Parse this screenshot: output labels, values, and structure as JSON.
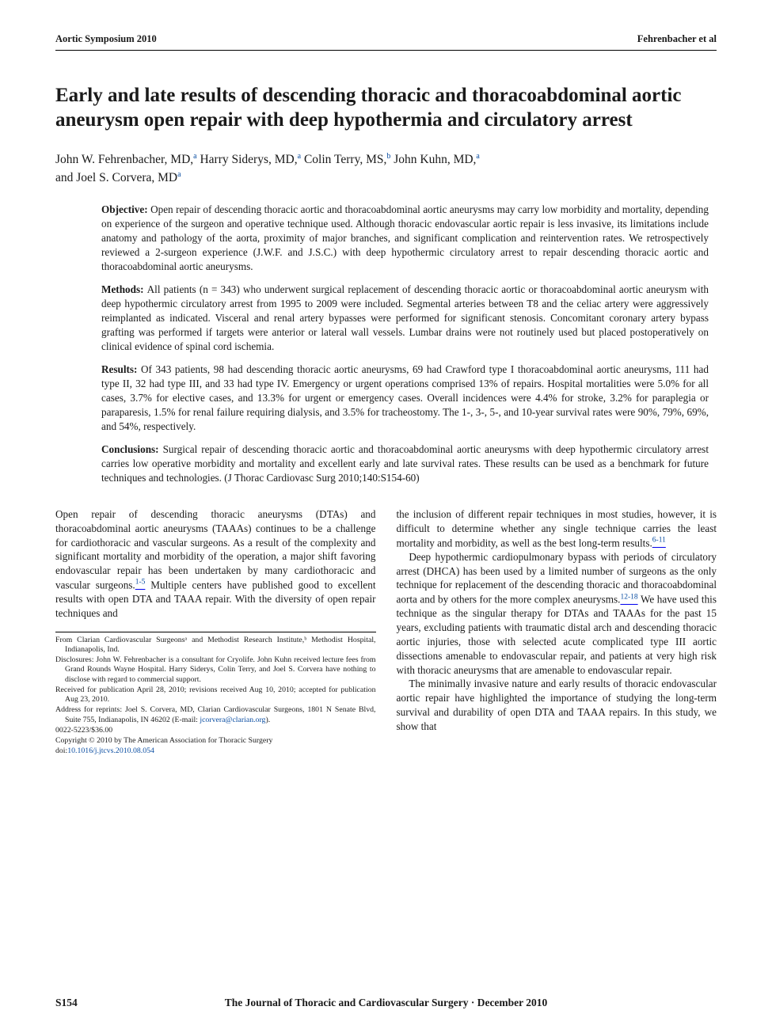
{
  "running_head": {
    "left": "Aortic Symposium 2010",
    "right": "Fehrenbacher et al"
  },
  "title": "Early and late results of descending thoracic and thoracoabdominal aortic aneurysm open repair with deep hypothermia and circulatory arrest",
  "authors": {
    "a1_name": "John W. Fehrenbacher, MD,",
    "a1_aff": "a",
    "a2_name": " Harry Siderys, MD,",
    "a2_aff": "a",
    "a3_name": " Colin Terry, MS,",
    "a3_aff": "b",
    "a4_name": " John Kuhn, MD,",
    "a4_aff": "a",
    "and": "and ",
    "a5_name": "Joel S. Corvera, MD",
    "a5_aff": "a"
  },
  "abstract": {
    "obj_label": "Objective: ",
    "obj_text": "Open repair of descending thoracic aortic and thoracoabdominal aortic aneurysms may carry low morbidity and mortality, depending on experience of the surgeon and operative technique used. Although thoracic endovascular aortic repair is less invasive, its limitations include anatomy and pathology of the aorta, proximity of major branches, and significant complication and reintervention rates. We retrospectively reviewed a 2-surgeon experience (J.W.F. and J.S.C.) with deep hypothermic circulatory arrest to repair descending thoracic aortic and thoracoabdominal aortic aneurysms.",
    "met_label": "Methods: ",
    "met_text": "All patients (n = 343) who underwent surgical replacement of descending thoracic aortic or thoracoabdominal aortic aneurysm with deep hypothermic circulatory arrest from 1995 to 2009 were included. Segmental arteries between T8 and the celiac artery were aggressively reimplanted as indicated. Visceral and renal artery bypasses were performed for significant stenosis. Concomitant coronary artery bypass grafting was performed if targets were anterior or lateral wall vessels. Lumbar drains were not routinely used but placed postoperatively on clinical evidence of spinal cord ischemia.",
    "res_label": "Results: ",
    "res_text": "Of 343 patients, 98 had descending thoracic aortic aneurysms, 69 had Crawford type I thoracoabdominal aortic aneurysms, 111 had type II, 32 had type III, and 33 had type IV. Emergency or urgent operations comprised 13% of repairs. Hospital mortalities were 5.0% for all cases, 3.7% for elective cases, and 13.3% for urgent or emergency cases. Overall incidences were 4.4% for stroke, 3.2% for paraplegia or paraparesis, 1.5% for renal failure requiring dialysis, and 3.5% for tracheostomy. The 1-, 3-, 5-, and 10-year survival rates were 90%, 79%, 69%, and 54%, respectively.",
    "con_label": "Conclusions: ",
    "con_text": "Surgical repair of descending thoracic aortic and thoracoabdominal aortic aneurysms with deep hypothermic circulatory arrest carries low operative morbidity and mortality and excellent early and late survival rates. These results can be used as a benchmark for future techniques and technologies. (J Thorac Cardiovasc Surg 2010;140:S154-60)"
  },
  "body": {
    "col1_p1a": "Open repair of descending thoracic aneurysms (DTAs) and thoracoabdominal aortic aneurysms (TAAAs) continues to be a challenge for cardiothoracic and vascular surgeons. As a result of the complexity and significant mortality and morbidity of the operation, a major shift favoring endovascular repair has been undertaken by many cardiothoracic and vascular surgeons.",
    "col1_ref1": "1-5",
    "col1_p1b": " Multiple centers have published good to excellent results with open DTA and TAAA repair. With the diversity of open repair techniques and ",
    "col2_p1a": "the inclusion of different repair techniques in most studies, however, it is difficult to determine whether any single technique carries the least mortality and morbidity, as well as the best long-term results.",
    "col2_ref1": "6-11",
    "col2_p2a": "Deep hypothermic cardiopulmonary bypass with periods of circulatory arrest (DHCA) has been used by a limited number of surgeons as the only technique for replacement of the descending thoracic and thoracoabdominal aorta and by others for the more complex aneurysms.",
    "col2_ref2": "12-18",
    "col2_p2b": " We have used this technique as the singular therapy for DTAs and TAAAs for the past 15 years, excluding patients with traumatic distal arch and descending thoracic aortic injuries, those with selected acute complicated type III aortic dissections amenable to endovascular repair, and patients at very high risk with thoracic aneurysms that are amenable to endovascular repair.",
    "col2_p3": "The minimally invasive nature and early results of thoracic endovascular aortic repair have highlighted the importance of studying the long-term survival and durability of open DTA and TAAA repairs. In this study, we show that"
  },
  "footnotes": {
    "from": "From Clarian Cardiovascular Surgeonsᵃ and Methodist Research Institute,ᵇ Methodist Hospital, Indianapolis, Ind.",
    "disclosures": "Disclosures: John W. Fehrenbacher is a consultant for Cryolife. John Kuhn received lecture fees from Grand Rounds Wayne Hospital. Harry Siderys, Colin Terry, and Joel S. Corvera have nothing to disclose with regard to commercial support.",
    "received": "Received for publication April 28, 2010; revisions received Aug 10, 2010; accepted for publication Aug 23, 2010.",
    "address_a": "Address for reprints: Joel S. Corvera, MD, Clarian Cardiovascular Surgeons, 1801 N Senate Blvd, Suite 755, Indianapolis, IN 46202 (E-mail: ",
    "address_email": "jcorvera@clarian.org",
    "address_b": ").",
    "issn": "0022-5223/$36.00",
    "copyright": "Copyright © 2010 by The American Association for Thoracic Surgery",
    "doi_label": "doi:",
    "doi": "10.1016/j.jtcvs.2010.08.054"
  },
  "footer": {
    "page": "S154",
    "text": "The Journal of Thoracic and Cardiovascular Surgery · December 2010"
  },
  "colors": {
    "text": "#1a1a1a",
    "link": "#0b4ea2",
    "rule": "#000000",
    "bg": "#ffffff"
  }
}
